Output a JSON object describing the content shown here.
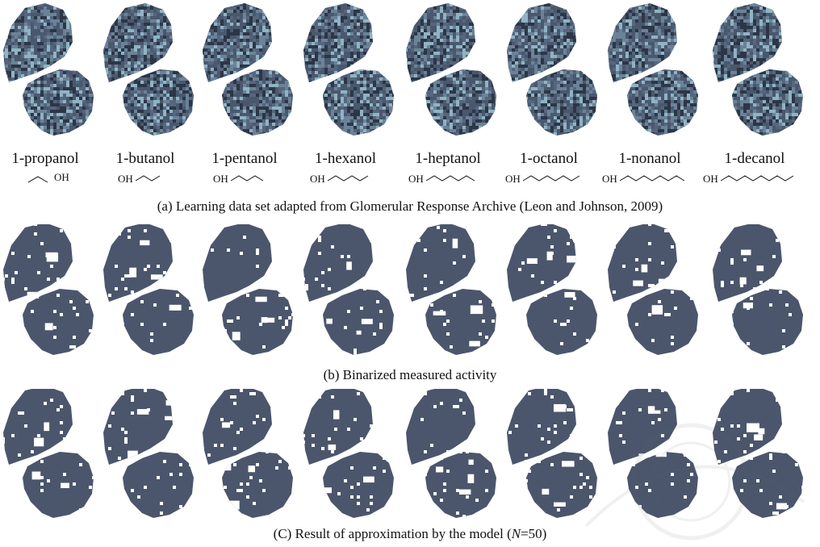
{
  "compounds": [
    {
      "name": "1-propanol",
      "carbons": 3,
      "oh": "right"
    },
    {
      "name": "1-butanol",
      "carbons": 4,
      "oh": "left"
    },
    {
      "name": "1-pentanol",
      "carbons": 5,
      "oh": "left"
    },
    {
      "name": "1-hexanol",
      "carbons": 6,
      "oh": "left"
    },
    {
      "name": "1-heptanol",
      "carbons": 7,
      "oh": "left"
    },
    {
      "name": "1-octanol",
      "carbons": 8,
      "oh": "left"
    },
    {
      "name": "1-nonanol",
      "carbons": 9,
      "oh": "left"
    },
    {
      "name": "1-decanol",
      "carbons": 10,
      "oh": "left"
    }
  ],
  "oh_text": "OH",
  "captions": {
    "a": "(a) Learning data set adapted from Glomerular Response Archive (Leon and Johnson, 2009)",
    "b": "(b) Binarized measured activity",
    "c_prefix": "(C) Result of approximation by the model (",
    "c_var": "N",
    "c_suffix": "=50)"
  },
  "colors": {
    "map_base": "#4a586e",
    "map_light": "#8fb4c4",
    "map_dark": "#2c3646",
    "binary_fill": "#4b566c",
    "text": "#111111"
  }
}
